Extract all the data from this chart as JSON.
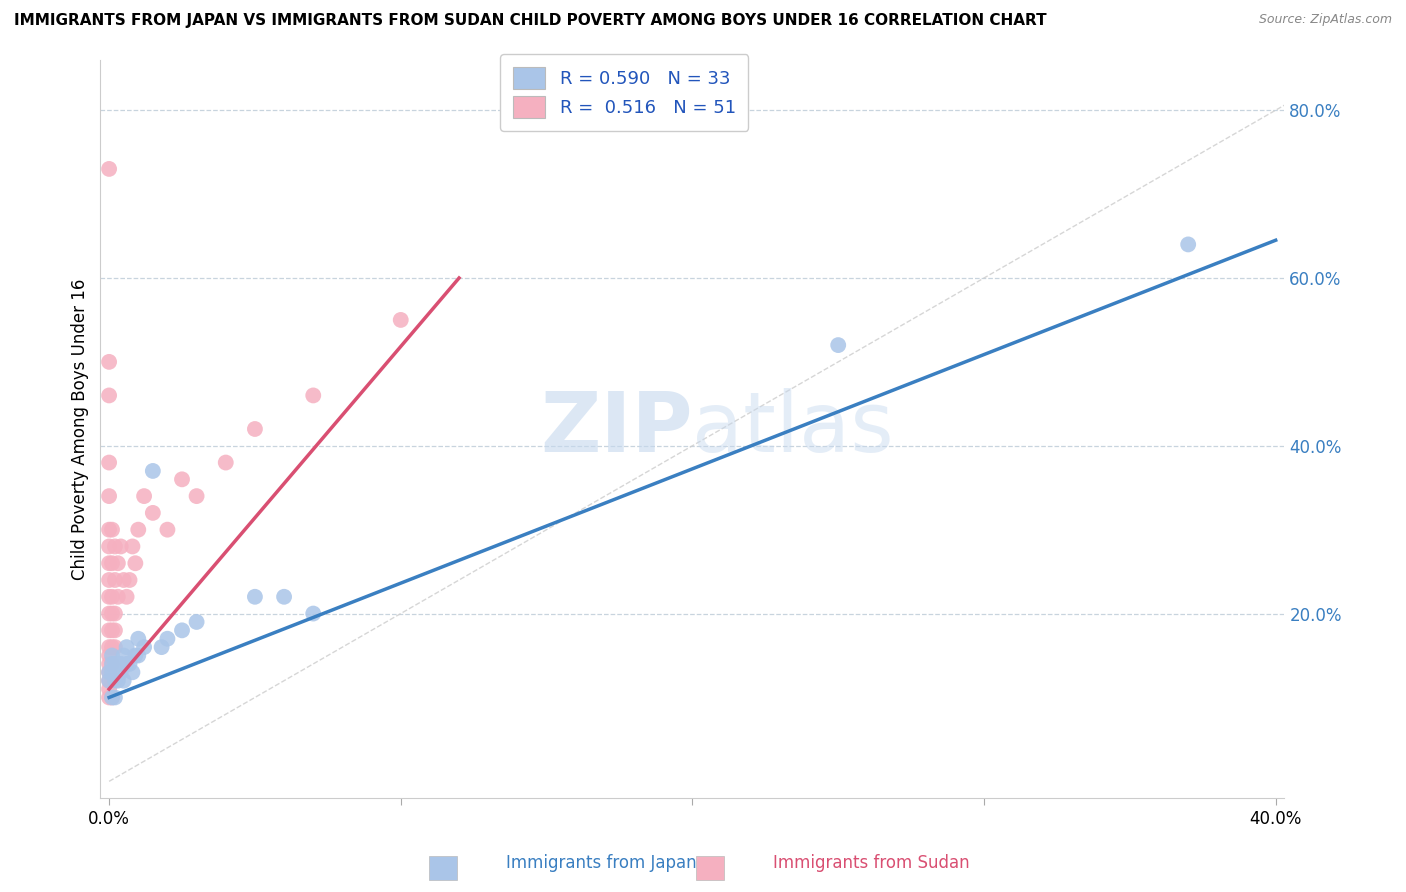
{
  "title": "IMMIGRANTS FROM JAPAN VS IMMIGRANTS FROM SUDAN CHILD POVERTY AMONG BOYS UNDER 16 CORRELATION CHART",
  "source": "Source: ZipAtlas.com",
  "ylabel": "Child Poverty Among Boys Under 16",
  "xlim": [
    -0.003,
    0.403
  ],
  "ylim": [
    -0.02,
    0.86
  ],
  "watermark_zip": "ZIP",
  "watermark_atlas": "atlas",
  "legend_japan_R": "0.590",
  "legend_japan_N": "33",
  "legend_sudan_R": "0.516",
  "legend_sudan_N": "51",
  "japan_color": "#aac5e8",
  "sudan_color": "#f5b0c0",
  "japan_line_color": "#3a7fc1",
  "sudan_line_color": "#d94f72",
  "diagonal_color": "#cccccc",
  "background_color": "#ffffff",
  "grid_color": "#c8d4de",
  "japan_scatter": [
    [
      0.0,
      0.13
    ],
    [
      0.0,
      0.12
    ],
    [
      0.001,
      0.1
    ],
    [
      0.001,
      0.13
    ],
    [
      0.001,
      0.14
    ],
    [
      0.001,
      0.15
    ],
    [
      0.002,
      0.1
    ],
    [
      0.002,
      0.12
    ],
    [
      0.002,
      0.14
    ],
    [
      0.003,
      0.12
    ],
    [
      0.003,
      0.14
    ],
    [
      0.004,
      0.13
    ],
    [
      0.004,
      0.14
    ],
    [
      0.005,
      0.12
    ],
    [
      0.005,
      0.15
    ],
    [
      0.006,
      0.14
    ],
    [
      0.006,
      0.16
    ],
    [
      0.007,
      0.14
    ],
    [
      0.008,
      0.13
    ],
    [
      0.009,
      0.15
    ],
    [
      0.01,
      0.15
    ],
    [
      0.01,
      0.17
    ],
    [
      0.012,
      0.16
    ],
    [
      0.015,
      0.37
    ],
    [
      0.018,
      0.16
    ],
    [
      0.02,
      0.17
    ],
    [
      0.025,
      0.18
    ],
    [
      0.03,
      0.19
    ],
    [
      0.05,
      0.22
    ],
    [
      0.06,
      0.22
    ],
    [
      0.07,
      0.2
    ],
    [
      0.25,
      0.52
    ],
    [
      0.37,
      0.64
    ]
  ],
  "sudan_scatter": [
    [
      0.0,
      0.73
    ],
    [
      0.0,
      0.5
    ],
    [
      0.0,
      0.46
    ],
    [
      0.0,
      0.38
    ],
    [
      0.0,
      0.34
    ],
    [
      0.0,
      0.3
    ],
    [
      0.0,
      0.28
    ],
    [
      0.0,
      0.26
    ],
    [
      0.0,
      0.24
    ],
    [
      0.0,
      0.22
    ],
    [
      0.0,
      0.2
    ],
    [
      0.0,
      0.18
    ],
    [
      0.0,
      0.16
    ],
    [
      0.0,
      0.15
    ],
    [
      0.0,
      0.14
    ],
    [
      0.0,
      0.13
    ],
    [
      0.0,
      0.12
    ],
    [
      0.0,
      0.11
    ],
    [
      0.0,
      0.1
    ],
    [
      0.001,
      0.3
    ],
    [
      0.001,
      0.26
    ],
    [
      0.001,
      0.22
    ],
    [
      0.001,
      0.2
    ],
    [
      0.001,
      0.18
    ],
    [
      0.001,
      0.16
    ],
    [
      0.001,
      0.14
    ],
    [
      0.001,
      0.12
    ],
    [
      0.001,
      0.1
    ],
    [
      0.002,
      0.28
    ],
    [
      0.002,
      0.24
    ],
    [
      0.002,
      0.2
    ],
    [
      0.002,
      0.18
    ],
    [
      0.002,
      0.16
    ],
    [
      0.003,
      0.26
    ],
    [
      0.003,
      0.22
    ],
    [
      0.004,
      0.28
    ],
    [
      0.005,
      0.24
    ],
    [
      0.006,
      0.22
    ],
    [
      0.007,
      0.24
    ],
    [
      0.008,
      0.28
    ],
    [
      0.009,
      0.26
    ],
    [
      0.01,
      0.3
    ],
    [
      0.012,
      0.34
    ],
    [
      0.015,
      0.32
    ],
    [
      0.02,
      0.3
    ],
    [
      0.025,
      0.36
    ],
    [
      0.03,
      0.34
    ],
    [
      0.04,
      0.38
    ],
    [
      0.05,
      0.42
    ],
    [
      0.07,
      0.46
    ],
    [
      0.1,
      0.55
    ]
  ],
  "japan_line": [
    [
      0.0,
      0.1
    ],
    [
      0.4,
      0.645
    ]
  ],
  "sudan_line": [
    [
      0.0,
      0.11
    ],
    [
      0.12,
      0.6
    ]
  ]
}
